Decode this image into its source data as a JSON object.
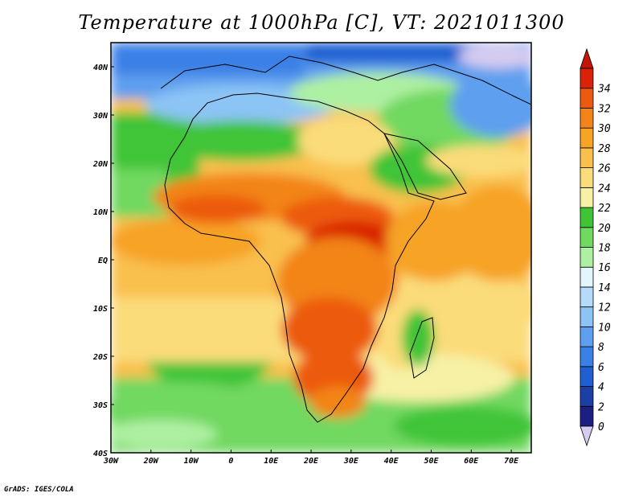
{
  "title": "Temperature at 1000hPa [C], VT: 2021011300",
  "credit": "GrADS: IGES/COLA",
  "lon_ticks": [
    "30W",
    "20W",
    "10W",
    "0",
    "10E",
    "20E",
    "30E",
    "40E",
    "50E",
    "60E",
    "70E"
  ],
  "lat_ticks": [
    "40N",
    "30N",
    "20N",
    "10N",
    "EQ",
    "10S",
    "20S",
    "30S",
    "40S"
  ],
  "colorbar": {
    "levels": [
      "0",
      "2",
      "4",
      "6",
      "8",
      "10",
      "12",
      "14",
      "16",
      "18",
      "20",
      "22",
      "24",
      "26",
      "28",
      "30",
      "32",
      "34"
    ],
    "colors": [
      "#1c1f80",
      "#1a3fa5",
      "#1f5fd1",
      "#3a80e6",
      "#5e9fef",
      "#8cc4f5",
      "#b4dcfa",
      "#e2f6fb",
      "#aef0a2",
      "#71d860",
      "#3fc437",
      "#f7f1a6",
      "#fbdc7a",
      "#f9c04e",
      "#f7a326",
      "#f38418",
      "#ec5a0f",
      "#d92306"
    ],
    "under_color": "#d6ccf0",
    "over_color": "#c41506"
  },
  "chart_data": {
    "type": "heatmap",
    "title": "Temperature at 1000hPa [C], VT: 2021011300",
    "xlim": [
      -30,
      75
    ],
    "ylim": [
      -40,
      45
    ],
    "units": "C",
    "field": "temperature at 1000hPa"
  }
}
